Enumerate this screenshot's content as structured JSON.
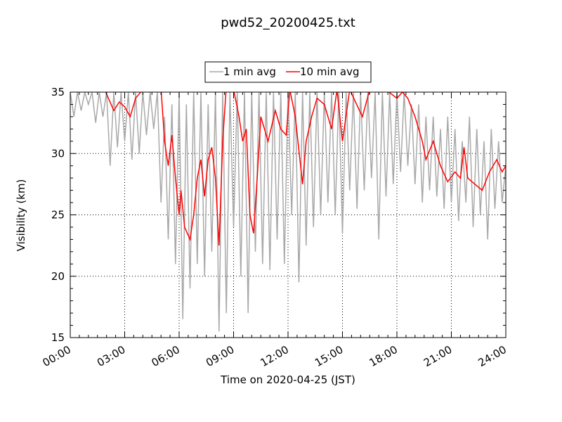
{
  "chart_data": {
    "type": "line",
    "title": "pwd52_20200425.txt",
    "xlabel": "Time on 2020-04-25 (JST)",
    "ylabel": "Visibility (km)",
    "xlim_hours": [
      0,
      24
    ],
    "ylim": [
      15,
      35
    ],
    "x_ticks": [
      {
        "h": 0,
        "label": "00:00"
      },
      {
        "h": 3,
        "label": "03:00"
      },
      {
        "h": 6,
        "label": "06:00"
      },
      {
        "h": 9,
        "label": "09:00"
      },
      {
        "h": 12,
        "label": "12:00"
      },
      {
        "h": 15,
        "label": "15:00"
      },
      {
        "h": 18,
        "label": "18:00"
      },
      {
        "h": 21,
        "label": "21:00"
      },
      {
        "h": 24,
        "label": "24:00"
      }
    ],
    "y_ticks": [
      {
        "v": 15,
        "label": "15"
      },
      {
        "v": 20,
        "label": "20"
      },
      {
        "v": 25,
        "label": "25"
      },
      {
        "v": 30,
        "label": "30"
      },
      {
        "v": 35,
        "label": "35"
      }
    ],
    "grid": true,
    "legend_position": "top-center",
    "series": [
      {
        "name": "1 min avg",
        "color": "#a9a9a9",
        "x_step_hours": 0.2,
        "values": [
          35,
          33,
          35,
          33.5,
          35,
          34,
          35,
          32.5,
          35,
          33,
          35,
          29,
          35,
          30.5,
          35,
          31,
          35,
          29.5,
          35,
          30,
          35,
          31.5,
          35,
          32,
          35,
          26,
          33,
          23,
          34,
          21,
          35,
          16.5,
          34,
          19,
          35,
          21,
          35,
          20,
          34,
          22,
          35,
          15.5,
          35,
          17,
          35,
          24,
          35,
          20,
          35,
          17,
          35,
          22,
          35,
          21,
          35,
          20.5,
          35,
          23,
          35,
          21,
          35,
          25,
          35,
          19.5,
          35,
          22.5,
          35,
          24,
          35,
          25,
          35,
          26,
          35,
          25,
          35,
          23.5,
          35,
          27,
          35,
          25.5,
          35,
          27,
          35,
          28,
          35,
          23,
          35,
          26.5,
          35,
          27.5,
          35,
          28.5,
          35,
          29,
          34,
          27.5,
          34,
          26,
          33,
          27,
          33,
          26.5,
          32,
          25.5,
          33,
          26,
          32,
          24.5,
          31,
          26,
          33,
          24,
          32,
          25,
          31,
          23,
          32,
          25.5,
          31,
          26,
          29
        ]
      },
      {
        "name": "10 min avg",
        "color": "#ff0000",
        "points": [
          [
            0,
            35.5
          ],
          [
            1,
            35.8
          ],
          [
            1.9,
            35.2
          ],
          [
            2.1,
            34.5
          ],
          [
            2.4,
            33.5
          ],
          [
            2.7,
            34.2
          ],
          [
            3.0,
            33.8
          ],
          [
            3.3,
            33
          ],
          [
            3.6,
            34.5
          ],
          [
            4.0,
            35.2
          ],
          [
            4.5,
            35.4
          ],
          [
            5.0,
            35.3
          ],
          [
            5.2,
            31
          ],
          [
            5.4,
            29
          ],
          [
            5.6,
            31.5
          ],
          [
            5.8,
            28
          ],
          [
            6.0,
            25
          ],
          [
            6.1,
            27
          ],
          [
            6.3,
            24
          ],
          [
            6.6,
            23
          ],
          [
            6.8,
            25
          ],
          [
            7.0,
            28
          ],
          [
            7.2,
            29.5
          ],
          [
            7.4,
            26.5
          ],
          [
            7.6,
            29.5
          ],
          [
            7.8,
            30.5
          ],
          [
            8.0,
            28
          ],
          [
            8.2,
            22.5
          ],
          [
            8.4,
            31
          ],
          [
            8.6,
            35.5
          ],
          [
            9.0,
            35.2
          ],
          [
            9.3,
            33
          ],
          [
            9.5,
            31
          ],
          [
            9.7,
            32
          ],
          [
            9.9,
            25
          ],
          [
            10.1,
            23.5
          ],
          [
            10.3,
            28
          ],
          [
            10.5,
            33
          ],
          [
            10.9,
            31
          ],
          [
            11.3,
            33.5
          ],
          [
            11.6,
            32
          ],
          [
            11.9,
            31.5
          ],
          [
            12.1,
            35.2
          ],
          [
            12.4,
            33
          ],
          [
            12.8,
            27.5
          ],
          [
            13.0,
            31
          ],
          [
            13.3,
            33
          ],
          [
            13.6,
            34.5
          ],
          [
            14.0,
            34
          ],
          [
            14.4,
            32
          ],
          [
            14.7,
            35.2
          ],
          [
            15.0,
            31
          ],
          [
            15.4,
            35.2
          ],
          [
            16.1,
            33
          ],
          [
            16.5,
            35.2
          ],
          [
            17.3,
            35.3
          ],
          [
            18.0,
            34.5
          ],
          [
            18.3,
            35
          ],
          [
            18.6,
            34.5
          ],
          [
            19.0,
            33
          ],
          [
            19.4,
            31
          ],
          [
            19.6,
            29.5
          ],
          [
            20.0,
            31
          ],
          [
            20.4,
            29
          ],
          [
            20.8,
            27.7
          ],
          [
            21.2,
            28.5
          ],
          [
            21.5,
            28
          ],
          [
            21.7,
            30.5
          ],
          [
            21.9,
            28
          ],
          [
            22.3,
            27.5
          ],
          [
            22.7,
            27
          ],
          [
            23.1,
            28.5
          ],
          [
            23.5,
            29.5
          ],
          [
            23.8,
            28.5
          ],
          [
            24,
            29
          ]
        ]
      }
    ]
  }
}
